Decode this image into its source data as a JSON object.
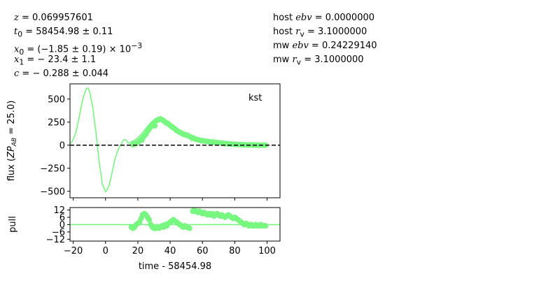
{
  "header_left": {
    "z": {
      "sym": "z",
      "text": " = 0.069957601"
    },
    "t0": {
      "sym": "t",
      "sub": "0",
      "text": " = 58454.98 ± 0.11"
    },
    "x0": {
      "sym": "x",
      "sub": "0",
      "text": " = (−1.85 ± 0.19) × 10",
      "sup": "−3"
    },
    "x1": {
      "sym": "x",
      "sub": "1",
      "text": " = − 23.4 ± 1.1"
    },
    "c": {
      "sym": "c",
      "text": " = − 0.288 ± 0.044"
    }
  },
  "header_right": {
    "host_ebv": {
      "prefix": "host ",
      "sym": "ebv",
      "text": " = 0.0000000"
    },
    "host_rv": {
      "prefix": "host ",
      "sym": "r",
      "sub": "v",
      "text": " = 3.1000000"
    },
    "mw_ebv": {
      "prefix": "mw ",
      "sym": "ebv",
      "text": " = 0.24229140"
    },
    "mw_rv": {
      "prefix": "mw ",
      "sym": "r",
      "sub": "v",
      "text": " = 3.1000000"
    }
  },
  "colors": {
    "series": "#77f77f",
    "zero_line": "#000000",
    "axis": "#000000"
  },
  "chart_data": [
    {
      "type": "scatter",
      "panel": "flux",
      "band_label": "kst",
      "ylabel_prefix": "flux (",
      "ylabel_math": "ZP",
      "ylabel_sub": "AB",
      "ylabel_suffix": " = 25.0)",
      "xlim": [
        -22,
        108
      ],
      "ylim": [
        -570,
        665
      ],
      "xticks": [
        -20,
        0,
        20,
        40,
        60,
        80,
        100
      ],
      "yticks": [
        -500,
        -250,
        0,
        250,
        500
      ],
      "ytick_labels": [
        "−500",
        "−250",
        "0",
        "250",
        "500"
      ],
      "zero_line": true,
      "model_curve": {
        "x": [
          -22,
          -20,
          -18,
          -16,
          -14,
          -12,
          -11,
          -10,
          -8,
          -6,
          -4,
          -2,
          0,
          2,
          4,
          6,
          8,
          10,
          11,
          12,
          13,
          14,
          16,
          18,
          20,
          22,
          24,
          26,
          28,
          30,
          32,
          34,
          36,
          38,
          40,
          42,
          44,
          46,
          48,
          50,
          52,
          53,
          54,
          56,
          58,
          60,
          62,
          64,
          66,
          68,
          70,
          72,
          75,
          80,
          85,
          90,
          95,
          100
        ],
        "y": [
          5,
          60,
          160,
          330,
          510,
          610,
          620,
          590,
          420,
          150,
          -170,
          -420,
          -505,
          -450,
          -300,
          -140,
          -40,
          20,
          55,
          62,
          50,
          22,
          35,
          55,
          80,
          115,
          160,
          205,
          245,
          275,
          290,
          280,
          265,
          245,
          225,
          195,
          170,
          150,
          130,
          115,
          100,
          50,
          90,
          75,
          60,
          55,
          50,
          45,
          40,
          35,
          28,
          22,
          18,
          12,
          8,
          5,
          3,
          2
        ]
      },
      "observations": {
        "x": [
          17,
          18,
          19,
          20,
          21,
          22,
          22.5,
          23,
          24,
          25,
          26,
          27,
          28,
          29,
          30,
          30.5,
          31,
          32,
          33,
          34,
          35,
          36,
          37,
          38,
          39,
          40,
          41,
          42,
          43,
          44,
          45,
          46,
          47,
          48,
          49,
          50,
          51,
          52,
          53,
          54,
          55,
          56,
          57,
          58,
          59,
          60,
          61,
          62,
          63,
          64,
          65,
          66,
          67,
          68,
          69,
          70,
          71,
          72,
          73,
          74,
          75,
          76,
          77,
          78,
          79,
          80,
          81,
          82,
          83,
          84,
          85,
          86,
          87,
          88,
          89,
          90,
          91,
          92,
          93,
          94,
          95,
          96,
          97,
          98,
          99
        ],
        "y": [
          5,
          15,
          20,
          30,
          45,
          60,
          55,
          80,
          100,
          120,
          150,
          175,
          200,
          220,
          240,
          210,
          260,
          270,
          280,
          285,
          275,
          265,
          250,
          240,
          230,
          215,
          200,
          190,
          175,
          160,
          150,
          140,
          130,
          120,
          115,
          110,
          105,
          95,
          85,
          80,
          72,
          65,
          60,
          55,
          50,
          50,
          45,
          42,
          40,
          38,
          35,
          35,
          32,
          30,
          28,
          25,
          25,
          22,
          20,
          18,
          15,
          15,
          12,
          12,
          10,
          10,
          8,
          8,
          7,
          5,
          5,
          5,
          3,
          3,
          2,
          2,
          2,
          1,
          1,
          1,
          0,
          0,
          0,
          0,
          0
        ]
      }
    },
    {
      "type": "scatter",
      "panel": "pull",
      "ylabel": "pull",
      "xlabel": "time - 58454.98",
      "xlim": [
        -22,
        108
      ],
      "ylim": [
        -13.5,
        14
      ],
      "xticks": [
        -20,
        0,
        20,
        40,
        60,
        80,
        100
      ],
      "xtick_labels": [
        "−20",
        "0",
        "20",
        "40",
        "60",
        "80",
        "100"
      ],
      "yticks": [
        12,
        6,
        0,
        -6,
        -12
      ],
      "ytick_labels": [
        "12",
        "6",
        "0",
        "−6",
        "−12"
      ],
      "zero_line": true,
      "residuals": {
        "x": [
          16,
          17,
          18,
          19,
          20,
          21,
          22,
          23,
          24,
          25,
          26,
          27,
          28,
          29,
          30,
          31,
          32,
          33,
          34,
          35,
          36,
          37,
          38,
          39,
          40,
          41,
          42,
          43,
          44,
          45,
          46,
          47,
          48,
          49,
          50,
          52,
          54,
          55,
          56,
          57,
          58,
          59,
          60,
          61,
          62,
          63,
          64,
          65,
          66,
          67,
          68,
          69,
          70,
          71,
          72,
          73,
          74,
          75,
          76,
          77,
          78,
          79,
          80,
          81,
          82,
          83,
          84,
          85,
          86,
          87,
          88,
          89,
          90,
          91,
          92,
          93,
          94,
          95,
          96,
          97,
          98,
          99
        ],
        "y": [
          -2,
          -3,
          -2,
          0,
          1,
          2,
          5,
          8,
          9,
          8,
          6,
          4,
          0,
          -2,
          -3,
          -3,
          -2,
          -3,
          -2,
          -1,
          -2,
          0,
          -1,
          1,
          2,
          3,
          4,
          3,
          2,
          1,
          0,
          -1,
          -2,
          -1,
          -2,
          -3,
          11,
          12,
          11,
          10,
          11,
          10,
          9,
          10,
          9,
          8,
          9,
          8,
          9,
          7,
          8,
          9,
          8,
          7,
          8,
          7,
          6,
          7,
          8,
          7,
          6,
          5,
          6,
          5,
          4,
          3,
          2,
          1,
          0,
          1,
          0,
          -1,
          0,
          -1,
          -1,
          0,
          -1,
          -1,
          0,
          -1,
          -1,
          -1
        ]
      }
    }
  ]
}
